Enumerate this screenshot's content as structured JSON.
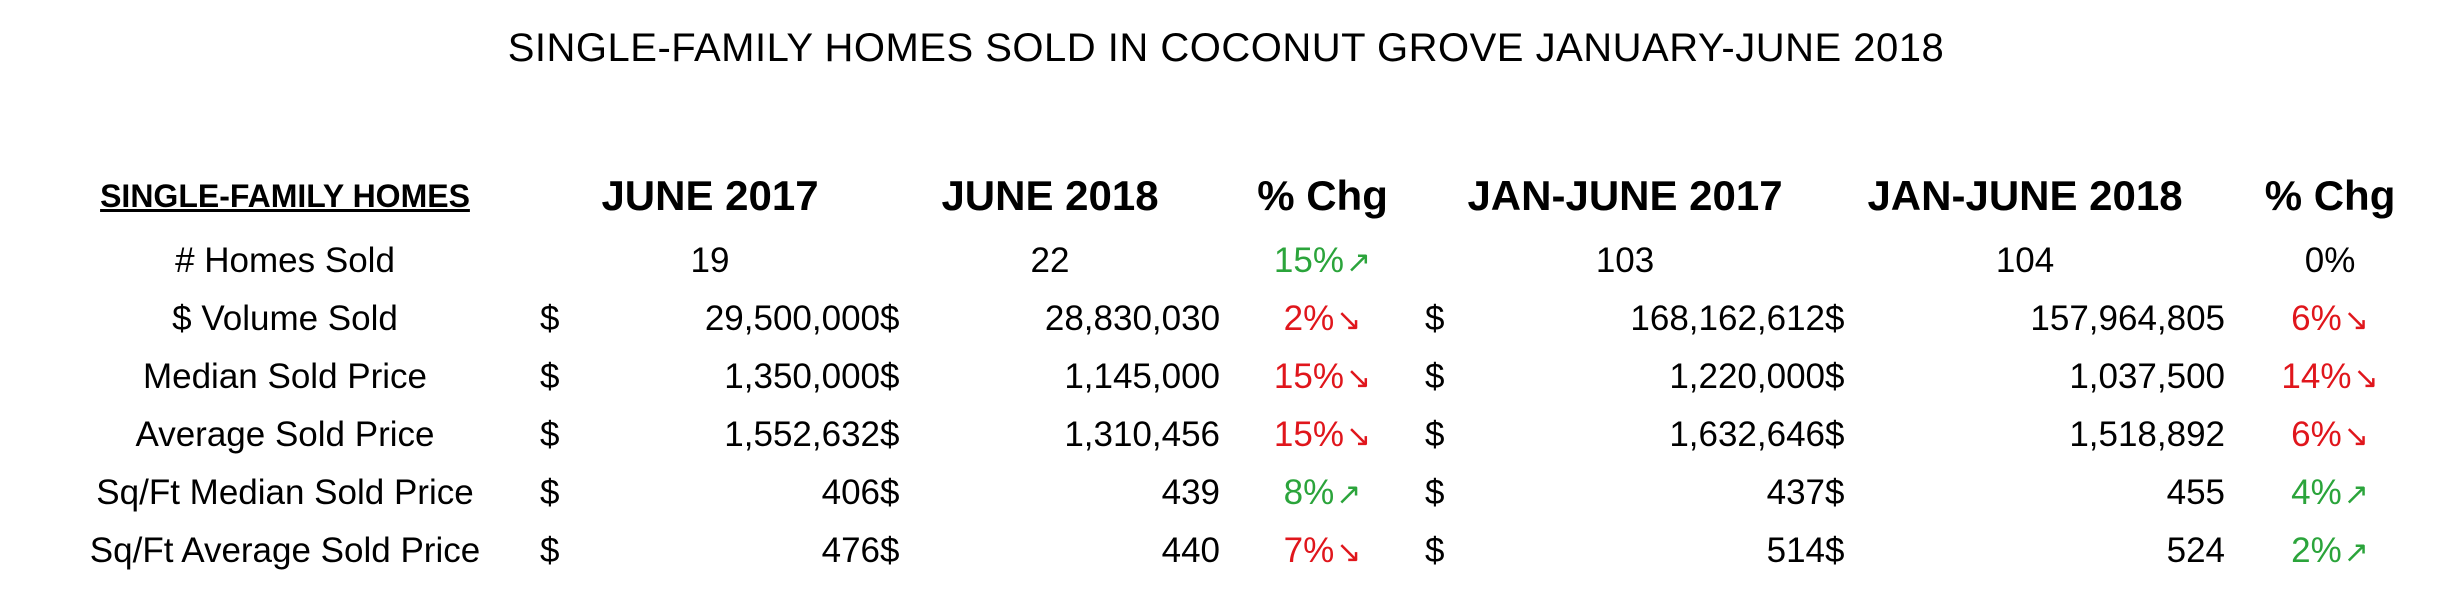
{
  "title": "SINGLE-FAMILY HOMES SOLD IN COCONUT GROVE JANUARY-JUNE 2018",
  "columns": {
    "rowhead": "SINGLE-FAMILY HOMES",
    "june2017": "JUNE 2017",
    "june2018": "JUNE 2018",
    "chg1": "% Chg",
    "ytd2017": "JAN-JUNE 2017",
    "ytd2018": "JAN-JUNE 2018",
    "chg2": "% Chg"
  },
  "colors": {
    "up": "#2ba43b",
    "down": "#e0161c"
  },
  "rows": [
    {
      "label": "# Homes Sold",
      "cur1": "",
      "v1": "19",
      "cur2": "",
      "v2": "22",
      "chg1": "15%",
      "dir1": "up",
      "cur3": "",
      "v3": "103",
      "cur4": "",
      "v4": "104",
      "chg2": "0%",
      "dir2": "flat"
    },
    {
      "label": "$ Volume Sold",
      "cur1": "$",
      "v1": "29,500,000",
      "cur2": "$",
      "v2": "28,830,030",
      "chg1": "2%",
      "dir1": "down",
      "cur3": "$",
      "v3": "168,162,612",
      "cur4": "$",
      "v4": "157,964,805",
      "chg2": "6%",
      "dir2": "down"
    },
    {
      "label": "Median Sold Price",
      "cur1": "$",
      "v1": "1,350,000",
      "cur2": "$",
      "v2": "1,145,000",
      "chg1": "15%",
      "dir1": "down",
      "cur3": "$",
      "v3": "1,220,000",
      "cur4": "$",
      "v4": "1,037,500",
      "chg2": "14%",
      "dir2": "down"
    },
    {
      "label": "Average Sold Price",
      "cur1": "$",
      "v1": "1,552,632",
      "cur2": "$",
      "v2": "1,310,456",
      "chg1": "15%",
      "dir1": "down",
      "cur3": "$",
      "v3": "1,632,646",
      "cur4": "$",
      "v4": "1,518,892",
      "chg2": "6%",
      "dir2": "down"
    },
    {
      "label": "Sq/Ft Median Sold Price",
      "cur1": "$",
      "v1": "406",
      "cur2": "$",
      "v2": "439",
      "chg1": "8%",
      "dir1": "up",
      "cur3": "$",
      "v3": "437",
      "cur4": "$",
      "v4": "455",
      "chg2": "4%",
      "dir2": "up"
    },
    {
      "label": "Sq/Ft Average Sold Price",
      "cur1": "$",
      "v1": "476",
      "cur2": "$",
      "v2": "440",
      "chg1": "7%",
      "dir1": "down",
      "cur3": "$",
      "v3": "514",
      "cur4": "$",
      "v4": "524",
      "chg2": "2%",
      "dir2": "up"
    }
  ]
}
